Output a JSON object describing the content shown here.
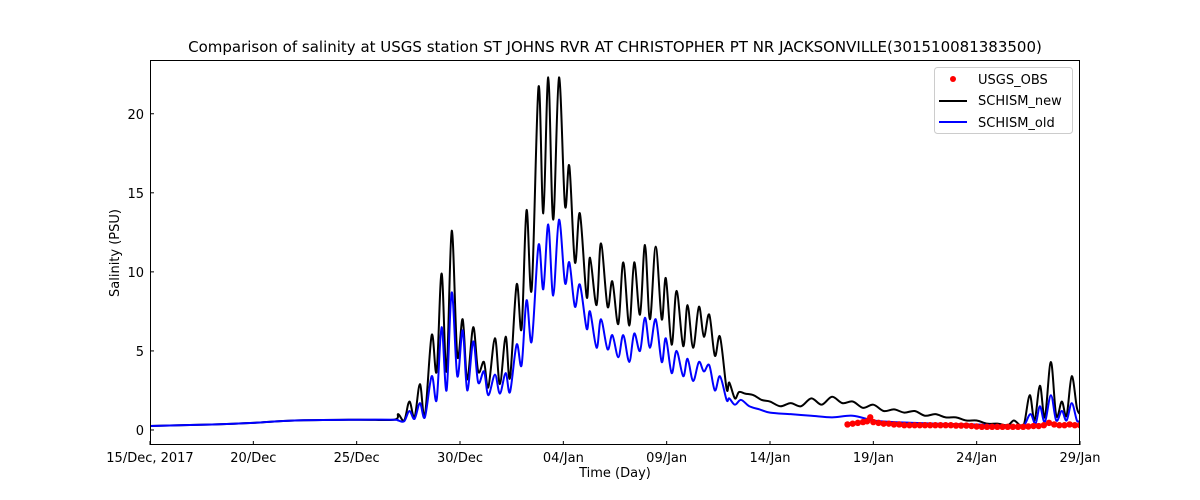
{
  "chart_data": {
    "type": "line",
    "title": "Comparison of salinity at USGS station ST JOHNS RVR AT CHRISTOPHER PT NR JACKSONVILLE(301510081383500)",
    "xlabel": "Time (Day)",
    "ylabel": "Salinity (PSU)",
    "x_units": "days since 15/Dec/2017",
    "xlim": [
      0,
      45
    ],
    "ylim": [
      -0.95,
      23.4
    ],
    "x_ticks": [
      {
        "value": 0,
        "label": "15/Dec, 2017"
      },
      {
        "value": 5,
        "label": "20/Dec"
      },
      {
        "value": 10,
        "label": "25/Dec"
      },
      {
        "value": 15,
        "label": "30/Dec"
      },
      {
        "value": 20,
        "label": "04/Jan"
      },
      {
        "value": 25,
        "label": "09/Jan"
      },
      {
        "value": 30,
        "label": "14/Jan"
      },
      {
        "value": 35,
        "label": "19/Jan"
      },
      {
        "value": 40,
        "label": "24/Jan"
      },
      {
        "value": 45,
        "label": "29/Jan"
      }
    ],
    "y_ticks": [
      {
        "value": 0,
        "label": "0"
      },
      {
        "value": 5,
        "label": "5"
      },
      {
        "value": 10,
        "label": "10"
      },
      {
        "value": 15,
        "label": "15"
      },
      {
        "value": 20,
        "label": "20"
      }
    ],
    "grid": false,
    "legend_position": "top-right",
    "series": [
      {
        "name": "USGS_OBS",
        "style": "markers",
        "color": "#ff0000",
        "points": [
          [
            33.75,
            0.35
          ],
          [
            34.0,
            0.4
          ],
          [
            34.25,
            0.45
          ],
          [
            34.5,
            0.5
          ],
          [
            34.7,
            0.55
          ],
          [
            34.85,
            0.8
          ],
          [
            35.0,
            0.5
          ],
          [
            35.25,
            0.45
          ],
          [
            35.5,
            0.4
          ],
          [
            35.75,
            0.4
          ],
          [
            36.0,
            0.35
          ],
          [
            36.25,
            0.35
          ],
          [
            36.5,
            0.3
          ],
          [
            36.75,
            0.3
          ],
          [
            37.0,
            0.3
          ],
          [
            37.25,
            0.3
          ],
          [
            37.5,
            0.3
          ],
          [
            37.75,
            0.3
          ],
          [
            38.0,
            0.3
          ],
          [
            38.25,
            0.3
          ],
          [
            38.5,
            0.3
          ],
          [
            38.75,
            0.3
          ],
          [
            39.0,
            0.28
          ],
          [
            39.25,
            0.28
          ],
          [
            39.5,
            0.28
          ],
          [
            39.75,
            0.25
          ],
          [
            40.0,
            0.22
          ],
          [
            40.25,
            0.2
          ],
          [
            40.5,
            0.2
          ],
          [
            40.75,
            0.2
          ],
          [
            41.0,
            0.2
          ],
          [
            41.25,
            0.2
          ],
          [
            41.5,
            0.2
          ],
          [
            41.75,
            0.2
          ],
          [
            42.0,
            0.2
          ],
          [
            42.25,
            0.2
          ],
          [
            42.5,
            0.22
          ],
          [
            42.75,
            0.25
          ],
          [
            43.0,
            0.25
          ],
          [
            43.25,
            0.3
          ],
          [
            43.5,
            0.45
          ],
          [
            43.75,
            0.35
          ],
          [
            44.0,
            0.3
          ],
          [
            44.25,
            0.3
          ],
          [
            44.5,
            0.35
          ],
          [
            44.75,
            0.3
          ],
          [
            45.0,
            0.3
          ]
        ]
      },
      {
        "name": "SCHISM_new",
        "style": "line",
        "color": "#000000",
        "points": [
          [
            0,
            0.25
          ],
          [
            3,
            0.35
          ],
          [
            5,
            0.45
          ],
          [
            7,
            0.6
          ],
          [
            10,
            0.65
          ],
          [
            11.8,
            0.65
          ],
          [
            12.01,
            1.0
          ],
          [
            12.3,
            0.6
          ],
          [
            12.55,
            1.8
          ],
          [
            12.8,
            0.8
          ],
          [
            13.06,
            2.9
          ],
          [
            13.3,
            0.9
          ],
          [
            13.63,
            6.0
          ],
          [
            13.87,
            3.7
          ],
          [
            14.11,
            9.9
          ],
          [
            14.35,
            3.7
          ],
          [
            14.6,
            12.6
          ],
          [
            14.87,
            4.7
          ],
          [
            15.13,
            7.0
          ],
          [
            15.35,
            3.2
          ],
          [
            15.64,
            6.5
          ],
          [
            15.88,
            3.7
          ],
          [
            16.16,
            4.3
          ],
          [
            16.37,
            2.7
          ],
          [
            16.69,
            5.8
          ],
          [
            16.93,
            2.9
          ],
          [
            17.21,
            5.9
          ],
          [
            17.42,
            3.3
          ],
          [
            17.74,
            9.2
          ],
          [
            17.98,
            6.4
          ],
          [
            18.22,
            13.9
          ],
          [
            18.47,
            8.9
          ],
          [
            18.8,
            21.7
          ],
          [
            19.03,
            13.7
          ],
          [
            19.27,
            22.3
          ],
          [
            19.51,
            13.3
          ],
          [
            19.79,
            22.3
          ],
          [
            20.08,
            14.2
          ],
          [
            20.29,
            16.7
          ],
          [
            20.56,
            10.6
          ],
          [
            20.8,
            13.7
          ],
          [
            21.13,
            8.4
          ],
          [
            21.29,
            10.9
          ],
          [
            21.61,
            7.9
          ],
          [
            21.82,
            11.8
          ],
          [
            22.14,
            7.8
          ],
          [
            22.37,
            9.4
          ],
          [
            22.66,
            6.7
          ],
          [
            22.9,
            10.6
          ],
          [
            23.19,
            6.6
          ],
          [
            23.43,
            10.6
          ],
          [
            23.71,
            7.3
          ],
          [
            23.95,
            11.7
          ],
          [
            24.19,
            7.0
          ],
          [
            24.47,
            11.6
          ],
          [
            24.76,
            7.0
          ],
          [
            24.96,
            9.6
          ],
          [
            25.24,
            5.4
          ],
          [
            25.48,
            8.8
          ],
          [
            25.8,
            5.3
          ],
          [
            26.01,
            7.9
          ],
          [
            26.28,
            5.2
          ],
          [
            26.56,
            7.8
          ],
          [
            26.8,
            5.9
          ],
          [
            27.06,
            7.3
          ],
          [
            27.33,
            4.7
          ],
          [
            27.58,
            5.9
          ],
          [
            27.9,
            2.6
          ],
          [
            28.03,
            3.0
          ],
          [
            28.3,
            2.0
          ],
          [
            28.5,
            2.4
          ],
          [
            28.8,
            2.3
          ],
          [
            29.2,
            2.2
          ],
          [
            29.6,
            1.9
          ],
          [
            30.0,
            1.8
          ],
          [
            30.5,
            1.5
          ],
          [
            31.0,
            1.7
          ],
          [
            31.5,
            1.5
          ],
          [
            32.0,
            2.0
          ],
          [
            32.5,
            1.6
          ],
          [
            33.0,
            2.1
          ],
          [
            33.5,
            1.7
          ],
          [
            34.0,
            1.8
          ],
          [
            34.5,
            1.4
          ],
          [
            35.0,
            1.6
          ],
          [
            35.5,
            1.2
          ],
          [
            36.0,
            1.3
          ],
          [
            36.5,
            1.1
          ],
          [
            37.0,
            1.2
          ],
          [
            37.5,
            0.9
          ],
          [
            38.0,
            1.0
          ],
          [
            38.5,
            0.8
          ],
          [
            39.0,
            0.8
          ],
          [
            39.5,
            0.6
          ],
          [
            40.0,
            0.6
          ],
          [
            40.5,
            0.4
          ],
          [
            41.0,
            0.4
          ],
          [
            41.5,
            0.3
          ],
          [
            41.8,
            0.6
          ],
          [
            42.1,
            0.3
          ],
          [
            42.3,
            0.4
          ],
          [
            42.57,
            2.2
          ],
          [
            42.8,
            0.6
          ],
          [
            43.06,
            2.8
          ],
          [
            43.3,
            0.8
          ],
          [
            43.59,
            4.3
          ],
          [
            43.85,
            0.9
          ],
          [
            44.12,
            1.8
          ],
          [
            44.35,
            0.9
          ],
          [
            44.6,
            3.4
          ],
          [
            44.85,
            1.4
          ],
          [
            45.0,
            1.0
          ]
        ]
      },
      {
        "name": "SCHISM_old",
        "style": "line",
        "color": "#0000ff",
        "points": [
          [
            0,
            0.25
          ],
          [
            3,
            0.35
          ],
          [
            5,
            0.45
          ],
          [
            7,
            0.6
          ],
          [
            10,
            0.65
          ],
          [
            11.8,
            0.65
          ],
          [
            12.01,
            0.6
          ],
          [
            12.3,
            0.55
          ],
          [
            12.55,
            1.2
          ],
          [
            12.8,
            0.7
          ],
          [
            13.06,
            1.7
          ],
          [
            13.3,
            0.8
          ],
          [
            13.63,
            3.4
          ],
          [
            13.87,
            1.9
          ],
          [
            14.11,
            6.5
          ],
          [
            14.35,
            2.5
          ],
          [
            14.6,
            8.7
          ],
          [
            14.87,
            3.4
          ],
          [
            15.13,
            6.3
          ],
          [
            15.35,
            2.5
          ],
          [
            15.64,
            5.6
          ],
          [
            15.88,
            3.0
          ],
          [
            16.16,
            3.7
          ],
          [
            16.37,
            2.2
          ],
          [
            16.69,
            3.5
          ],
          [
            16.93,
            2.3
          ],
          [
            17.21,
            3.6
          ],
          [
            17.42,
            2.4
          ],
          [
            17.74,
            5.4
          ],
          [
            17.98,
            4.1
          ],
          [
            18.22,
            8.2
          ],
          [
            18.47,
            5.6
          ],
          [
            18.8,
            11.7
          ],
          [
            19.03,
            8.9
          ],
          [
            19.27,
            13.0
          ],
          [
            19.51,
            8.5
          ],
          [
            19.79,
            13.3
          ],
          [
            20.08,
            9.3
          ],
          [
            20.29,
            10.6
          ],
          [
            20.56,
            7.8
          ],
          [
            20.8,
            9.2
          ],
          [
            21.13,
            6.4
          ],
          [
            21.29,
            7.5
          ],
          [
            21.61,
            5.2
          ],
          [
            21.82,
            7.0
          ],
          [
            22.14,
            5.1
          ],
          [
            22.37,
            6.0
          ],
          [
            22.66,
            4.6
          ],
          [
            22.9,
            6.0
          ],
          [
            23.19,
            4.3
          ],
          [
            23.43,
            6.1
          ],
          [
            23.71,
            5.0
          ],
          [
            23.95,
            7.1
          ],
          [
            24.19,
            5.2
          ],
          [
            24.47,
            7.0
          ],
          [
            24.76,
            4.3
          ],
          [
            24.96,
            5.8
          ],
          [
            25.24,
            3.6
          ],
          [
            25.48,
            5.0
          ],
          [
            25.8,
            3.4
          ],
          [
            26.01,
            4.5
          ],
          [
            26.28,
            3.1
          ],
          [
            26.56,
            4.3
          ],
          [
            26.8,
            3.7
          ],
          [
            27.06,
            4.1
          ],
          [
            27.33,
            2.5
          ],
          [
            27.58,
            3.4
          ],
          [
            27.9,
            1.9
          ],
          [
            28.03,
            2.0
          ],
          [
            28.3,
            1.6
          ],
          [
            28.6,
            1.9
          ],
          [
            29.0,
            1.5
          ],
          [
            29.5,
            1.3
          ],
          [
            30.0,
            1.1
          ],
          [
            31.0,
            1.0
          ],
          [
            32.0,
            0.9
          ],
          [
            33.0,
            0.8
          ],
          [
            34.0,
            0.9
          ],
          [
            35.0,
            0.6
          ],
          [
            36.0,
            0.5
          ],
          [
            37.0,
            0.45
          ],
          [
            38.0,
            0.4
          ],
          [
            40.0,
            0.35
          ],
          [
            42.0,
            0.25
          ],
          [
            42.3,
            0.3
          ],
          [
            42.6,
            1.0
          ],
          [
            42.85,
            0.4
          ],
          [
            43.06,
            1.5
          ],
          [
            43.3,
            0.5
          ],
          [
            43.59,
            2.2
          ],
          [
            43.85,
            0.6
          ],
          [
            44.12,
            1.2
          ],
          [
            44.35,
            0.6
          ],
          [
            44.6,
            1.7
          ],
          [
            44.85,
            0.6
          ],
          [
            45.0,
            0.6
          ]
        ]
      }
    ]
  }
}
